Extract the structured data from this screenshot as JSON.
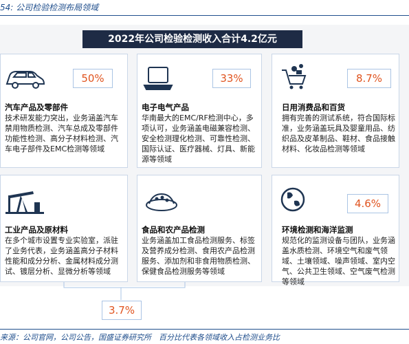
{
  "header": {
    "caption": "54: 公司检验检测布局领域"
  },
  "banner": {
    "title": "2022年公司检验检测收入合计4.2亿元"
  },
  "cards": [
    {
      "share": "50%",
      "title": "汽车产品及零部件",
      "description": "技术研发能力突出，业务涵盖汽车禁用物质检测、汽车总成及零部件功能性检测、高分子材料检测、汽车电子部件及EMC检测等领域"
    },
    {
      "share": "33%",
      "title": "电子电气产品",
      "description": "华南最大的EMC/RF检测中心，多项认可，业务涵盖电磁兼容检测、安全检测理化检测、可靠性检测、国际认证、医疗器械、灯具、新能源等领域"
    },
    {
      "share": "8.7%",
      "title": "日用消费品和百货",
      "description": "拥有完善的测试系统，符合国际标准，业务涵盖玩具及婴童用品、纺织品及皮革制品、鞋材、食品接触材料、化妆品检测等领域"
    },
    {
      "share": "3.7%",
      "title": "工业产品及原材料",
      "description": "在多个城市设置专业实验室，派驻了业务代表，业务涵盖高分子材料性能和成分分析、金属材料成分测试、镀层分析、显微分析等领域"
    },
    {
      "title": "食品和农产品检测",
      "description": "业务涵盖加工食品检测服务、标签及营养成分检测、食用农产品检测服务、添加剂和非食用物质检测、保健食品检测服务等领域"
    },
    {
      "share": "4.6%",
      "title": "环境检测和海洋监测",
      "description": "规范化的监测设备与团队，业务涵盖水质检测、环境空气和废气领域、土壤领域、噪声领域、室内空气、公共卫生领域、空气废气检测等领域"
    }
  ],
  "footer": {
    "source": "来源：公司官网，公司公告，国盛证券研究所　百分比代表各领域收入占检测业务比"
  }
}
